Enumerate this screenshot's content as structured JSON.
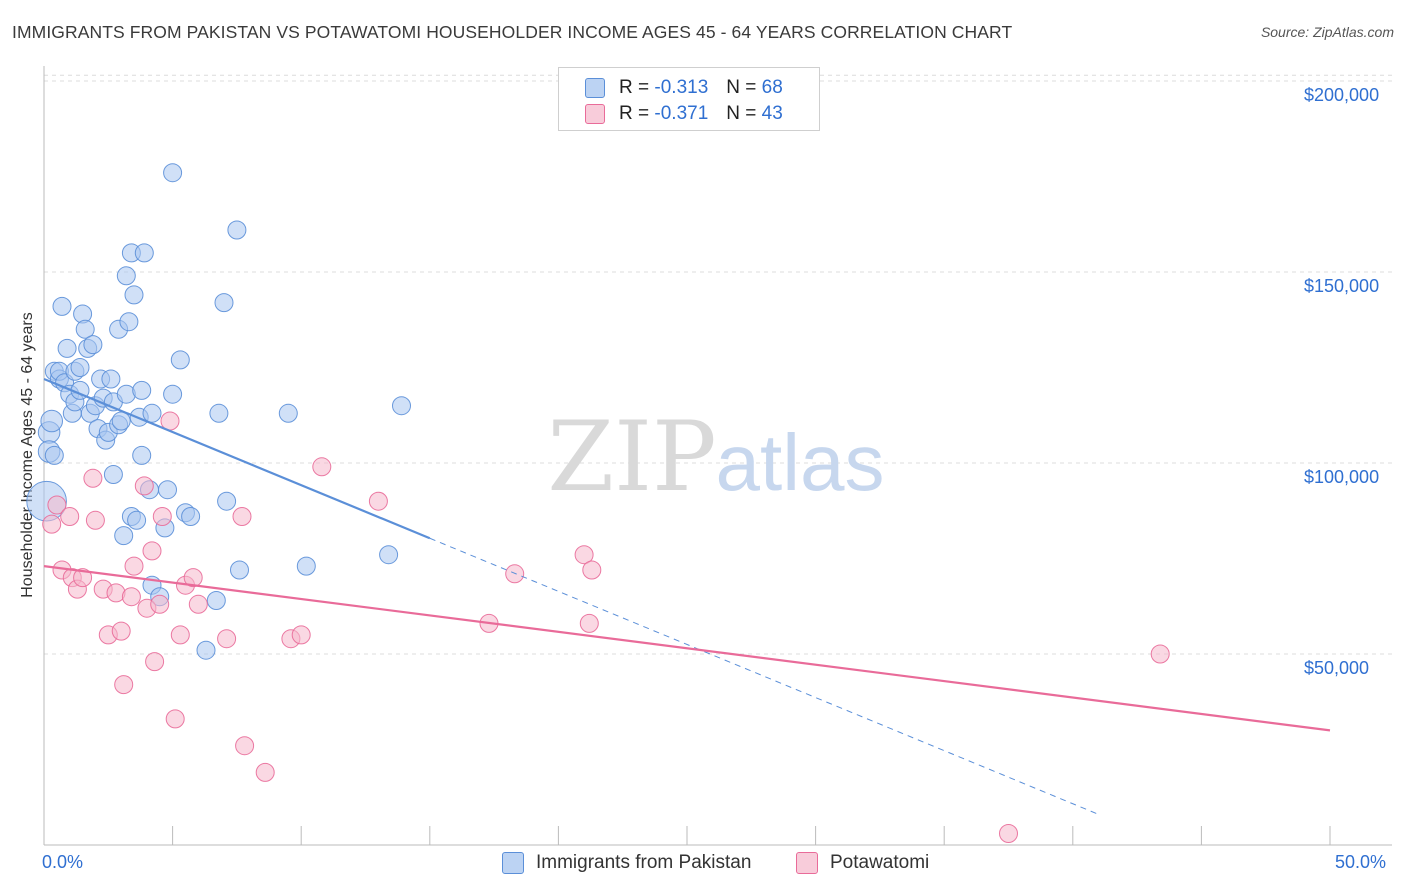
{
  "title": "IMMIGRANTS FROM PAKISTAN VS POTAWATOMI HOUSEHOLDER INCOME AGES 45 - 64 YEARS CORRELATION CHART",
  "source": "Source: ZipAtlas.com",
  "colors": {
    "blue": "#5b8fd8",
    "blue_fill": "#a9c6f0",
    "pink": "#e96b99",
    "pink_fill": "#f5b8cc",
    "tick_text": "#2f6fd1"
  },
  "legend": {
    "r_label": "R =",
    "n_label": "N =",
    "series": [
      {
        "r": "-0.313",
        "n": "68"
      },
      {
        "r": "-0.371",
        "n": "43"
      }
    ]
  },
  "watermark": {
    "zip": "ZIP",
    "atlas": "atlas"
  },
  "chart_data": {
    "type": "scatter",
    "title": "IMMIGRANTS FROM PAKISTAN VS POTAWATOMI HOUSEHOLDER INCOME AGES 45 - 64 YEARS CORRELATION CHART",
    "xlabel": "",
    "ylabel": "Householder Income Ages 45 - 64 years",
    "xlim": [
      0,
      50
    ],
    "ylim": [
      0,
      210000
    ],
    "x_tick_labels": [
      "0.0%",
      "50.0%"
    ],
    "y_ticks": [
      {
        "value": 50000,
        "label": "$50,000"
      },
      {
        "value": 100000,
        "label": "$100,000"
      },
      {
        "value": 150000,
        "label": "$150,000"
      },
      {
        "value": 200000,
        "label": "$200,000"
      }
    ],
    "series": [
      {
        "name": "Immigrants from Pakistan",
        "color": "#5b8fd8",
        "trend": {
          "x_start": 0,
          "y_start": 122000,
          "x_solid_end": 15,
          "x_dash_end": 41,
          "y_end_at_50": -17000
        },
        "points": [
          [
            0.1,
            90000,
            22
          ],
          [
            0.2,
            108000,
            12
          ],
          [
            0.2,
            103000,
            12
          ],
          [
            0.3,
            111000,
            12
          ],
          [
            0.4,
            102000,
            10
          ],
          [
            0.4,
            124000,
            10
          ],
          [
            0.6,
            122000,
            10
          ],
          [
            0.6,
            124000,
            10
          ],
          [
            0.7,
            141000,
            10
          ],
          [
            0.8,
            121000,
            10
          ],
          [
            0.9,
            130000,
            10
          ],
          [
            1.0,
            118000,
            10
          ],
          [
            1.1,
            113000,
            10
          ],
          [
            1.2,
            124000,
            10
          ],
          [
            1.2,
            116000,
            10
          ],
          [
            1.4,
            119000,
            10
          ],
          [
            1.4,
            125000,
            10
          ],
          [
            1.5,
            139000,
            10
          ],
          [
            1.6,
            135000,
            10
          ],
          [
            1.7,
            130000,
            10
          ],
          [
            1.8,
            113000,
            10
          ],
          [
            1.9,
            131000,
            10
          ],
          [
            2.0,
            115000,
            10
          ],
          [
            2.1,
            109000,
            10
          ],
          [
            2.2,
            122000,
            10
          ],
          [
            2.3,
            117000,
            10
          ],
          [
            2.4,
            106000,
            10
          ],
          [
            2.5,
            108000,
            10
          ],
          [
            2.6,
            122000,
            10
          ],
          [
            2.7,
            116000,
            10
          ],
          [
            2.7,
            97000,
            10
          ],
          [
            2.9,
            110000,
            10
          ],
          [
            2.9,
            135000,
            10
          ],
          [
            3.0,
            111000,
            10
          ],
          [
            3.1,
            81000,
            10
          ],
          [
            3.2,
            118000,
            10
          ],
          [
            3.2,
            149000,
            10
          ],
          [
            3.3,
            137000,
            10
          ],
          [
            3.4,
            155000,
            10
          ],
          [
            3.4,
            86000,
            10
          ],
          [
            3.5,
            144000,
            10
          ],
          [
            3.6,
            85000,
            10
          ],
          [
            3.7,
            112000,
            10
          ],
          [
            3.8,
            119000,
            10
          ],
          [
            3.8,
            102000,
            10
          ],
          [
            3.9,
            155000,
            10
          ],
          [
            4.1,
            93000,
            10
          ],
          [
            4.2,
            68000,
            10
          ],
          [
            4.2,
            113000,
            10
          ],
          [
            4.5,
            65000,
            10
          ],
          [
            4.7,
            83000,
            10
          ],
          [
            4.8,
            93000,
            10
          ],
          [
            5.0,
            118000,
            10
          ],
          [
            5.0,
            176000,
            10
          ],
          [
            5.3,
            127000,
            10
          ],
          [
            5.5,
            87000,
            10
          ],
          [
            5.7,
            86000,
            10
          ],
          [
            6.3,
            51000,
            10
          ],
          [
            6.7,
            64000,
            10
          ],
          [
            6.8,
            113000,
            10
          ],
          [
            7.0,
            142000,
            10
          ],
          [
            7.1,
            90000,
            10
          ],
          [
            7.5,
            161000,
            10
          ],
          [
            7.6,
            72000,
            10
          ],
          [
            9.5,
            113000,
            10
          ],
          [
            10.2,
            73000,
            10
          ],
          [
            13.4,
            76000,
            10
          ],
          [
            13.9,
            115000,
            10
          ]
        ]
      },
      {
        "name": "Potawatomi",
        "color": "#e96b99",
        "trend": {
          "x_start": 0,
          "y_start": 73000,
          "x_end": 50,
          "y_end": 30000
        },
        "points": [
          [
            0.3,
            84000,
            10
          ],
          [
            0.5,
            89000,
            10
          ],
          [
            0.7,
            72000,
            10
          ],
          [
            1.0,
            86000,
            10
          ],
          [
            1.1,
            70000,
            10
          ],
          [
            1.3,
            67000,
            10
          ],
          [
            1.5,
            70000,
            10
          ],
          [
            1.9,
            96000,
            10
          ],
          [
            2.0,
            85000,
            10
          ],
          [
            2.3,
            67000,
            10
          ],
          [
            2.5,
            55000,
            10
          ],
          [
            2.8,
            66000,
            10
          ],
          [
            3.0,
            56000,
            10
          ],
          [
            3.1,
            42000,
            10
          ],
          [
            3.4,
            65000,
            10
          ],
          [
            3.5,
            73000,
            10
          ],
          [
            3.9,
            94000,
            10
          ],
          [
            4.0,
            62000,
            10
          ],
          [
            4.2,
            77000,
            10
          ],
          [
            4.3,
            48000,
            10
          ],
          [
            4.5,
            63000,
            10
          ],
          [
            4.6,
            86000,
            10
          ],
          [
            4.9,
            111000,
            10
          ],
          [
            5.1,
            33000,
            10
          ],
          [
            5.3,
            55000,
            10
          ],
          [
            5.5,
            68000,
            10
          ],
          [
            5.8,
            70000,
            10
          ],
          [
            6.0,
            63000,
            10
          ],
          [
            7.1,
            54000,
            10
          ],
          [
            7.7,
            86000,
            10
          ],
          [
            7.8,
            26000,
            10
          ],
          [
            8.6,
            19000,
            10
          ],
          [
            9.6,
            54000,
            10
          ],
          [
            10.0,
            55000,
            10
          ],
          [
            10.8,
            99000,
            10
          ],
          [
            13.0,
            90000,
            10
          ],
          [
            17.3,
            58000,
            10
          ],
          [
            18.3,
            71000,
            10
          ],
          [
            21.0,
            76000,
            10
          ],
          [
            21.2,
            58000,
            10
          ],
          [
            21.3,
            72000,
            10
          ],
          [
            37.5,
            3000,
            10
          ],
          [
            43.4,
            50000,
            10
          ]
        ]
      }
    ]
  },
  "bottom_legend": [
    {
      "label": "Immigrants from Pakistan"
    },
    {
      "label": "Potawatomi"
    }
  ]
}
